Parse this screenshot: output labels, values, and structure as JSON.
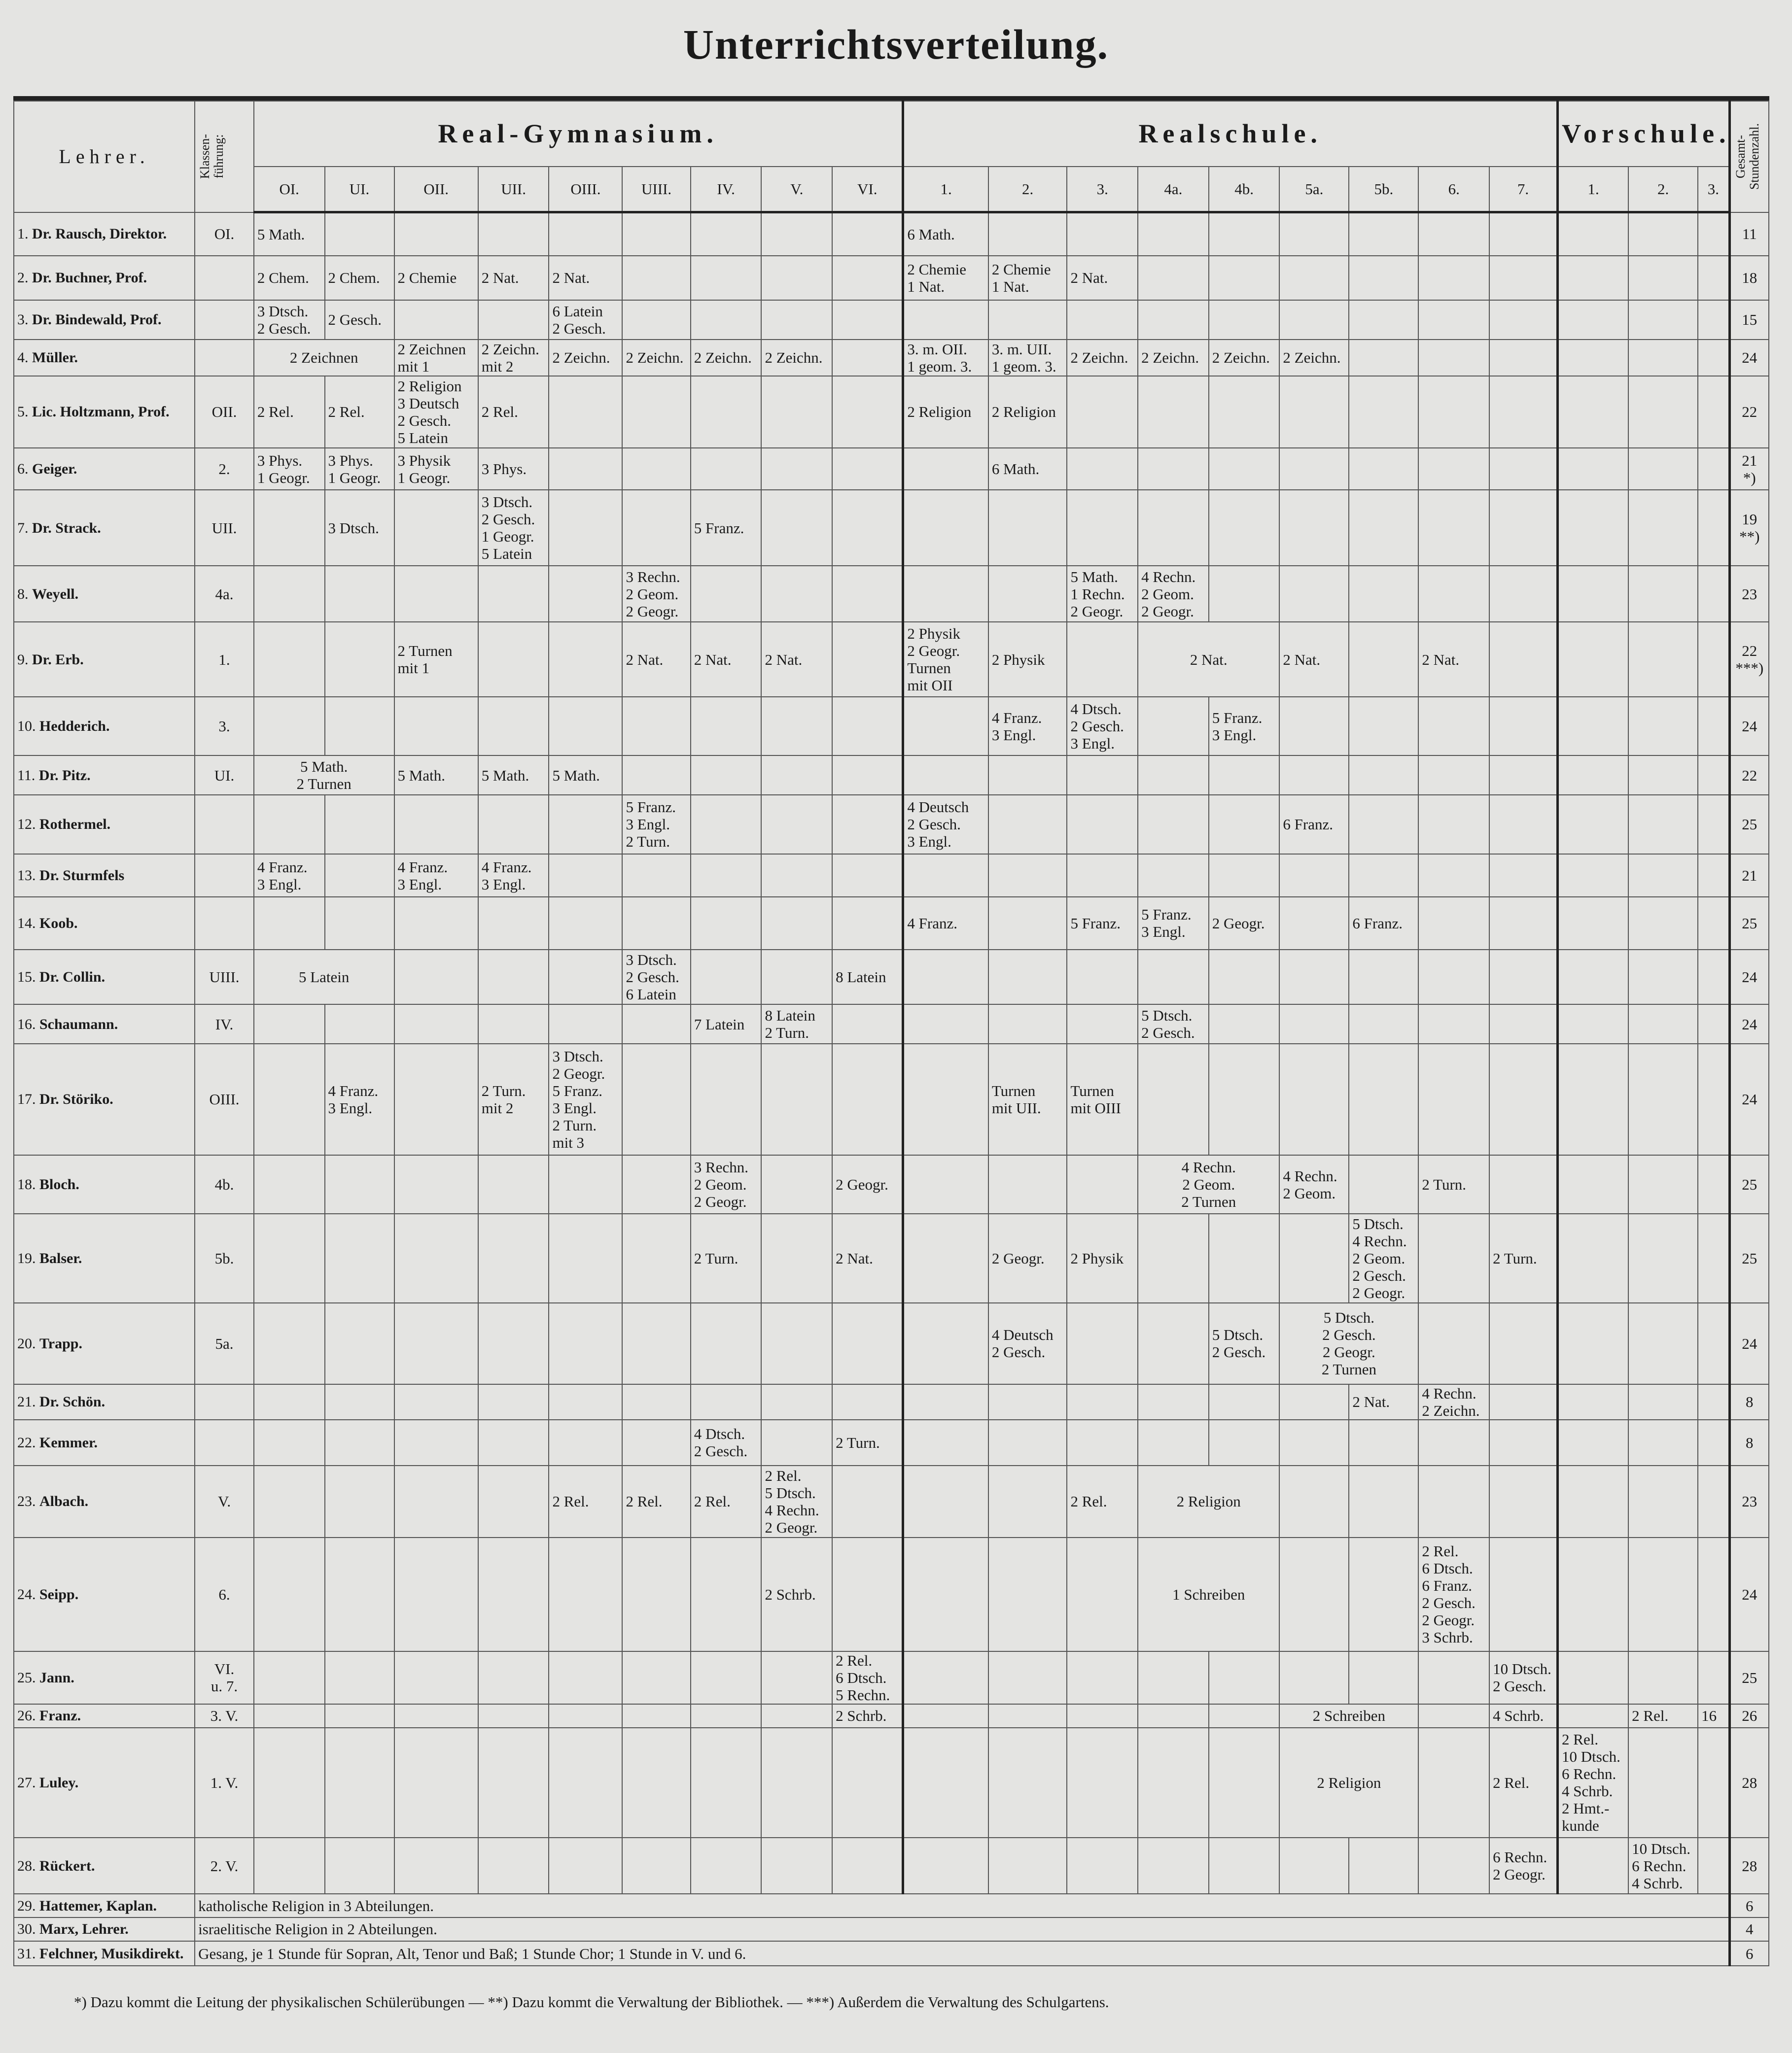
{
  "title": "Unterrichtsverteilung.",
  "header": {
    "teacher": "Lehrer.",
    "klassenfuehrung": "Klassen-\nführung:",
    "gesamt": "Gesamt-\nStundenzahl.",
    "groups": [
      {
        "label": "Real-Gymnasium.",
        "columns": [
          "OI.",
          "UI.",
          "OII.",
          "UII.",
          "OIII.",
          "UIII.",
          "IV.",
          "V.",
          "VI."
        ]
      },
      {
        "label": "Realschule.",
        "columns": [
          "1.",
          "2.",
          "3.",
          "4a.",
          "4b.",
          "5a.",
          "5b.",
          "6.",
          "7."
        ]
      },
      {
        "label": "Vorschule.",
        "columns": [
          "1.",
          "2.",
          "3."
        ]
      }
    ]
  },
  "rows": [
    {
      "num": "1.",
      "name": "Dr. Rausch, Direktor.",
      "kf": "OI.",
      "total": "11",
      "cells": [
        {
          "c": 0,
          "t": "5 Math."
        },
        {
          "c": 9,
          "t": "6 Math."
        }
      ]
    },
    {
      "num": "2.",
      "name": "Dr. Buchner, Prof.",
      "kf": "",
      "total": "18",
      "cells": [
        {
          "c": 0,
          "t": "2 Chem."
        },
        {
          "c": 1,
          "t": "2 Chem."
        },
        {
          "c": 2,
          "t": "2 Chemie"
        },
        {
          "c": 3,
          "t": "2 Nat."
        },
        {
          "c": 4,
          "t": "2 Nat."
        },
        {
          "c": 9,
          "t": "2 Chemie\n1 Nat."
        },
        {
          "c": 10,
          "t": "2 Chemie\n1 Nat."
        },
        {
          "c": 11,
          "t": "2 Nat."
        }
      ]
    },
    {
      "num": "3.",
      "name": "Dr. Bindewald, Prof.",
      "kf": "",
      "total": "15",
      "cells": [
        {
          "c": 0,
          "t": "3 Dtsch.\n2 Gesch."
        },
        {
          "c": 1,
          "t": "2 Gesch."
        },
        {
          "c": 4,
          "t": "6 Latein\n2 Gesch."
        }
      ]
    },
    {
      "num": "4.",
      "name": "Müller.",
      "kf": "",
      "total": "24",
      "cells": [
        {
          "c": 0,
          "s": 2,
          "t": "2 Zeichnen"
        },
        {
          "c": 2,
          "t": "2 Zeichnen\nmit 1"
        },
        {
          "c": 3,
          "t": "2 Zeichn.\nmit 2"
        },
        {
          "c": 4,
          "t": "2 Zeichn."
        },
        {
          "c": 5,
          "t": "2 Zeichn."
        },
        {
          "c": 6,
          "t": "2 Zeichn."
        },
        {
          "c": 7,
          "t": "2 Zeichn."
        },
        {
          "c": 9,
          "t": "3. m. OII.\n1 geom. 3."
        },
        {
          "c": 10,
          "t": "3. m. UII.\n1 geom. 3."
        },
        {
          "c": 11,
          "t": "2 Zeichn."
        },
        {
          "c": 12,
          "t": "2 Zeichn."
        },
        {
          "c": 13,
          "t": "2 Zeichn."
        },
        {
          "c": 14,
          "t": "2 Zeichn."
        }
      ]
    },
    {
      "num": "5.",
      "name": "Lic. Holtzmann, Prof.",
      "kf": "OII.",
      "total": "22",
      "cells": [
        {
          "c": 0,
          "t": "2 Rel."
        },
        {
          "c": 1,
          "t": "2 Rel."
        },
        {
          "c": 2,
          "t": "2 Religion\n3 Deutsch\n2 Gesch.\n5 Latein"
        },
        {
          "c": 3,
          "t": "2 Rel."
        },
        {
          "c": 9,
          "t": "2 Religion"
        },
        {
          "c": 10,
          "t": "2 Religion"
        }
      ]
    },
    {
      "num": "6.",
      "name": "Geiger.",
      "kf": "2.",
      "total": "21\n*)",
      "cells": [
        {
          "c": 0,
          "t": "3 Phys.\n1 Geogr."
        },
        {
          "c": 1,
          "t": "3 Phys.\n1 Geogr."
        },
        {
          "c": 2,
          "t": "3 Physik\n1 Geogr."
        },
        {
          "c": 3,
          "t": "3 Phys."
        },
        {
          "c": 10,
          "t": "6 Math."
        }
      ]
    },
    {
      "num": "7.",
      "name": "Dr. Strack.",
      "kf": "UII.",
      "total": "19\n**)",
      "cells": [
        {
          "c": 1,
          "t": "3 Dtsch."
        },
        {
          "c": 3,
          "t": "3 Dtsch.\n2 Gesch.\n1 Geogr.\n5 Latein"
        },
        {
          "c": 6,
          "t": "5 Franz."
        }
      ]
    },
    {
      "num": "8.",
      "name": "Weyell.",
      "kf": "4a.",
      "total": "23",
      "cells": [
        {
          "c": 5,
          "t": "3 Rechn.\n2 Geom.\n2 Geogr."
        },
        {
          "c": 11,
          "t": "5 Math.\n1 Rechn.\n2 Geogr."
        },
        {
          "c": 12,
          "t": "4 Rechn.\n2 Geom.\n2 Geogr."
        }
      ]
    },
    {
      "num": "9.",
      "name": "Dr. Erb.",
      "kf": "1.",
      "total": "22\n***)",
      "cells": [
        {
          "c": 2,
          "t": "2 Turnen\nmit 1"
        },
        {
          "c": 5,
          "t": "2 Nat."
        },
        {
          "c": 6,
          "t": "2 Nat."
        },
        {
          "c": 7,
          "t": "2 Nat."
        },
        {
          "c": 9,
          "t": "2 Physik\n2 Geogr.\nTurnen\nmit OII"
        },
        {
          "c": 10,
          "t": "2 Physik"
        },
        {
          "c": 12,
          "s": 2,
          "t": "2 Nat."
        },
        {
          "c": 14,
          "t": "2 Nat."
        },
        {
          "c": 16,
          "t": "2 Nat."
        }
      ]
    },
    {
      "num": "10.",
      "name": "Hedderich.",
      "kf": "3.",
      "total": "24",
      "cells": [
        {
          "c": 10,
          "t": "4 Franz.\n3 Engl."
        },
        {
          "c": 11,
          "t": "4 Dtsch.\n2 Gesch.\n3 Engl."
        },
        {
          "c": 13,
          "t": "5 Franz.\n3 Engl."
        }
      ]
    },
    {
      "num": "11.",
      "name": "Dr. Pitz.",
      "kf": "UI.",
      "total": "22",
      "cells": [
        {
          "c": 0,
          "s": 2,
          "t": "5 Math.\n2 Turnen"
        },
        {
          "c": 2,
          "t": "5 Math."
        },
        {
          "c": 3,
          "t": "5 Math."
        },
        {
          "c": 4,
          "t": "5 Math."
        }
      ]
    },
    {
      "num": "12.",
      "name": "Rothermel.",
      "kf": "",
      "total": "25",
      "cells": [
        {
          "c": 5,
          "t": "5 Franz.\n3 Engl.\n2 Turn."
        },
        {
          "c": 9,
          "t": "4 Deutsch\n2 Gesch.\n3 Engl."
        },
        {
          "c": 14,
          "t": "6 Franz."
        }
      ]
    },
    {
      "num": "13.",
      "name": "Dr. Sturmfels",
      "kf": "",
      "total": "21",
      "cells": [
        {
          "c": 0,
          "t": "4 Franz.\n3 Engl."
        },
        {
          "c": 2,
          "t": "4 Franz.\n3 Engl."
        },
        {
          "c": 3,
          "t": "4 Franz.\n3 Engl."
        }
      ]
    },
    {
      "num": "14.",
      "name": "Koob.",
      "kf": "",
      "total": "25",
      "cells": [
        {
          "c": 9,
          "t": "4 Franz."
        },
        {
          "c": 11,
          "t": "5 Franz."
        },
        {
          "c": 12,
          "t": "5 Franz.\n3 Engl."
        },
        {
          "c": 13,
          "t": "2 Geogr."
        },
        {
          "c": 15,
          "t": "6 Franz."
        }
      ]
    },
    {
      "num": "15.",
      "name": "Dr. Collin.",
      "kf": "UIII.",
      "total": "24",
      "cells": [
        {
          "c": 0,
          "s": 2,
          "t": "5 Latein"
        },
        {
          "c": 5,
          "t": "3 Dtsch.\n2 Gesch.\n6 Latein"
        },
        {
          "c": 8,
          "t": "8 Latein"
        }
      ]
    },
    {
      "num": "16.",
      "name": "Schaumann.",
      "kf": "IV.",
      "total": "24",
      "cells": [
        {
          "c": 6,
          "t": "7 Latein"
        },
        {
          "c": 7,
          "t": "8 Latein\n2 Turn."
        },
        {
          "c": 12,
          "t": "5 Dtsch.\n2 Gesch."
        }
      ]
    },
    {
      "num": "17.",
      "name": "Dr. Störiko.",
      "kf": "OIII.",
      "total": "24",
      "cells": [
        {
          "c": 1,
          "t": "4 Franz.\n3 Engl."
        },
        {
          "c": 3,
          "t": "2 Turn.\nmit 2"
        },
        {
          "c": 4,
          "t": "3 Dtsch.\n2 Geogr.\n5 Franz.\n3 Engl.\n2 Turn.\nmit 3"
        },
        {
          "c": 10,
          "t": "Turnen\nmit UII."
        },
        {
          "c": 11,
          "t": "Turnen\nmit OIII"
        }
      ]
    },
    {
      "num": "18.",
      "name": "Bloch.",
      "kf": "4b.",
      "total": "25",
      "cells": [
        {
          "c": 6,
          "t": "3 Rechn.\n2 Geom.\n2 Geogr."
        },
        {
          "c": 8,
          "t": "2 Geogr."
        },
        {
          "c": 12,
          "s": 2,
          "t": "4 Rechn.\n2 Geom.\n2 Turnen"
        },
        {
          "c": 14,
          "t": "4 Rechn.\n2 Geom."
        },
        {
          "c": 16,
          "t": "2 Turn."
        }
      ]
    },
    {
      "num": "19.",
      "name": "Balser.",
      "kf": "5b.",
      "total": "25",
      "cells": [
        {
          "c": 6,
          "t": "2 Turn."
        },
        {
          "c": 8,
          "t": "2 Nat."
        },
        {
          "c": 10,
          "t": "2 Geogr."
        },
        {
          "c": 11,
          "t": "2 Physik"
        },
        {
          "c": 15,
          "t": "5 Dtsch.\n4 Rechn.\n2 Geom.\n2 Gesch.\n2 Geogr."
        },
        {
          "c": 17,
          "t": "2 Turn."
        }
      ]
    },
    {
      "num": "20.",
      "name": "Trapp.",
      "kf": "5a.",
      "total": "24",
      "cells": [
        {
          "c": 10,
          "t": "4 Deutsch\n2 Gesch."
        },
        {
          "c": 13,
          "t": "5 Dtsch.\n2 Gesch."
        },
        {
          "c": 14,
          "s": 2,
          "t": "5 Dtsch.\n2 Gesch.\n2 Geogr.\n2 Turnen"
        }
      ]
    },
    {
      "num": "21.",
      "name": "Dr. Schön.",
      "kf": "",
      "total": "8",
      "cells": [
        {
          "c": 15,
          "t": "2 Nat."
        },
        {
          "c": 16,
          "t": "4 Rechn.\n2 Zeichn."
        }
      ]
    },
    {
      "num": "22.",
      "name": "Kemmer.",
      "kf": "",
      "total": "8",
      "cells": [
        {
          "c": 6,
          "t": "4 Dtsch.\n2 Gesch."
        },
        {
          "c": 8,
          "t": "2 Turn."
        }
      ]
    },
    {
      "num": "23.",
      "name": "Albach.",
      "kf": "V.",
      "total": "23",
      "cells": [
        {
          "c": 4,
          "t": "2 Rel."
        },
        {
          "c": 5,
          "t": "2 Rel."
        },
        {
          "c": 6,
          "t": "2 Rel."
        },
        {
          "c": 7,
          "t": "2 Rel.\n5 Dtsch.\n4 Rechn.\n2 Geogr."
        },
        {
          "c": 11,
          "t": "2 Rel."
        },
        {
          "c": 12,
          "s": 2,
          "t": "2 Religion"
        }
      ]
    },
    {
      "num": "24.",
      "name": "Seipp.",
      "kf": "6.",
      "total": "24",
      "cells": [
        {
          "c": 7,
          "t": "2 Schrb."
        },
        {
          "c": 12,
          "s": 2,
          "t": "1 Schreiben"
        },
        {
          "c": 16,
          "t": "2 Rel.\n6 Dtsch.\n6 Franz.\n2 Gesch.\n2 Geogr.\n3 Schrb."
        }
      ]
    },
    {
      "num": "25.",
      "name": "Jann.",
      "kf": "VI.\nu. 7.",
      "total": "25",
      "cells": [
        {
          "c": 8,
          "t": "2 Rel.\n6 Dtsch.\n5 Rechn."
        },
        {
          "c": 17,
          "t": "10 Dtsch.\n2 Gesch."
        }
      ]
    },
    {
      "num": "26.",
      "name": "Franz.",
      "kf": "3. V.",
      "total": "26",
      "cells": [
        {
          "c": 8,
          "t": "2 Schrb."
        },
        {
          "c": 14,
          "s": 2,
          "t": "2 Schreiben"
        },
        {
          "c": 17,
          "t": "4 Schrb."
        },
        {
          "c": 19,
          "t": "2 Rel."
        },
        {
          "c": 20,
          "t": "16"
        }
      ]
    },
    {
      "num": "27.",
      "name": "Luley.",
      "kf": "1. V.",
      "total": "28",
      "cells": [
        {
          "c": 14,
          "s": 2,
          "t": "2 Religion"
        },
        {
          "c": 17,
          "t": "2 Rel."
        },
        {
          "c": 18,
          "t": "2 Rel.\n10 Dtsch.\n6 Rechn.\n4 Schrb.\n2 Hmt.-\nkunde"
        }
      ]
    },
    {
      "num": "28.",
      "name": "Rückert.",
      "kf": "2. V.",
      "total": "28",
      "cells": [
        {
          "c": 17,
          "t": "6 Rechn.\n2 Geogr."
        },
        {
          "c": 19,
          "t": "10 Dtsch.\n6 Rechn.\n4 Schrb."
        }
      ]
    },
    {
      "num": "29.",
      "name": "Hattemer, Kaplan.",
      "full": "katholische Religion in 3 Abteilungen.",
      "total": "6"
    },
    {
      "num": "30.",
      "name": "Marx, Lehrer.",
      "full": "israelitische Religion in 2 Abteilungen.",
      "total": "4"
    },
    {
      "num": "31.",
      "name": "Felchner, Musikdirekt.",
      "full": "Gesang, je 1 Stunde für Sopran, Alt, Tenor und Baß; 1 Stunde Chor; 1 Stunde in V. und 6.",
      "total": "6"
    }
  ],
  "footnote": "*) Dazu kommt die Leitung der physikalischen Schülerübungen — **) Dazu kommt die Verwaltung der Bibliothek. — ***) Außerdem die Verwaltung des Schulgartens."
}
